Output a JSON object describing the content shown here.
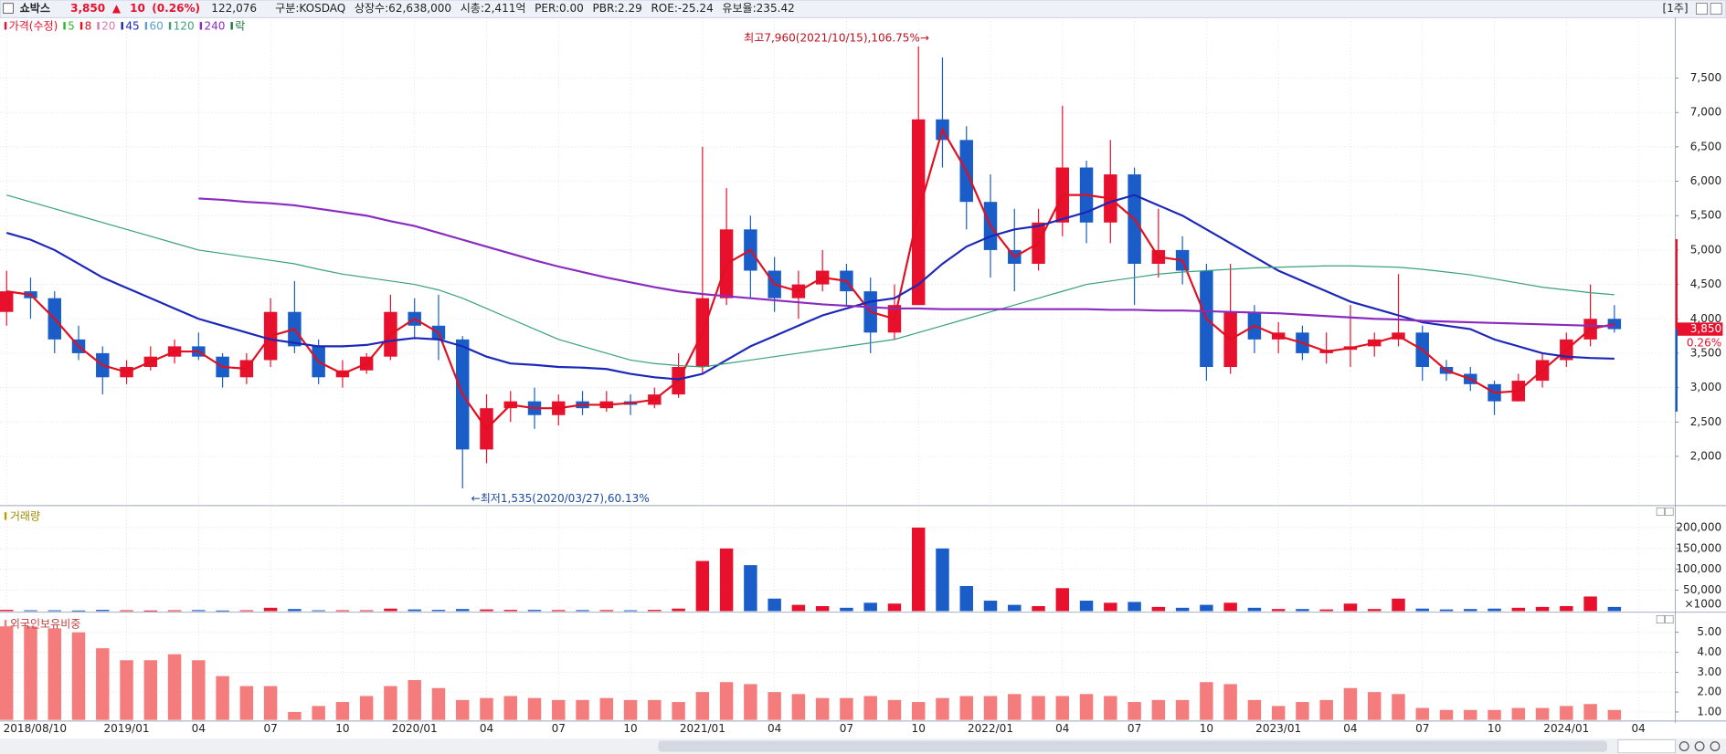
{
  "header": {
    "name": "쇼박스",
    "price": "3,850",
    "arrow": "▲",
    "change": "10",
    "change_pct": "(0.26%)",
    "volume": "122,076",
    "fields": [
      "구분:KOSDAQ",
      "상장수:62,638,000",
      "시총:2,411억",
      "PER:0.00",
      "PBR:2.29",
      "ROE:-25.24",
      "유보율:235.42"
    ],
    "period": "[1주]",
    "marker_pct": "0.26%"
  },
  "chart_data": [
    {
      "type": "candlestick",
      "legend_title": "가격(수정)",
      "legend_extra": "락",
      "categories": [
        "2018/08/10",
        null,
        null,
        null,
        null,
        "2019/01",
        null,
        null,
        "04",
        null,
        null,
        "07",
        null,
        null,
        "10",
        null,
        null,
        "2020/01",
        null,
        null,
        "04",
        null,
        null,
        "07",
        null,
        null,
        "10",
        null,
        null,
        "2021/01",
        null,
        null,
        "04",
        null,
        null,
        "07",
        null,
        null,
        "10",
        null,
        null,
        "2022/01",
        null,
        null,
        "04",
        null,
        null,
        "07",
        null,
        null,
        "10",
        null,
        null,
        "2023/01",
        null,
        null,
        "04",
        null,
        null,
        "07",
        null,
        null,
        "10",
        null,
        null,
        "2024/01",
        null,
        null,
        "04"
      ],
      "open": [
        4100,
        4400,
        4300,
        3700,
        3500,
        3150,
        3300,
        3450,
        3600,
        3450,
        3150,
        3400,
        4100,
        3600,
        3150,
        3250,
        3450,
        4100,
        3900,
        3700,
        2100,
        2700,
        2800,
        2600,
        2800,
        2700,
        2800,
        2750,
        2900,
        3300,
        4300,
        5300,
        4700,
        4300,
        4500,
        4700,
        4400,
        3800,
        4200,
        6900,
        6600,
        5700,
        5000,
        4800,
        5400,
        6200,
        5400,
        6100,
        4800,
        5000,
        4700,
        3300,
        4100,
        3700,
        3800,
        3500,
        3550,
        3600,
        3700,
        3800,
        3300,
        3200,
        3050,
        2800,
        3100,
        3400,
        3700,
        4000,
        null
      ],
      "high": [
        4700,
        4600,
        4400,
        3900,
        3600,
        3400,
        3600,
        3700,
        3800,
        3500,
        3500,
        4300,
        4550,
        3700,
        3400,
        3500,
        4350,
        4300,
        4350,
        3750,
        2900,
        2950,
        3000,
        2900,
        2950,
        2950,
        2900,
        3000,
        3500,
        6500,
        5900,
        5500,
        4900,
        4700,
        5000,
        4800,
        4600,
        4500,
        7960,
        7800,
        6800,
        6100,
        5600,
        5600,
        7100,
        6300,
        6600,
        6200,
        5600,
        5200,
        4800,
        4800,
        4200,
        3950,
        3900,
        3800,
        4200,
        3800,
        4650,
        3900,
        3400,
        3300,
        3100,
        3200,
        3500,
        3800,
        4500,
        4200,
        null
      ],
      "low": [
        3900,
        4000,
        3500,
        3400,
        2900,
        3050,
        3250,
        3350,
        3400,
        3000,
        3050,
        3300,
        3500,
        3050,
        3000,
        3200,
        3400,
        3700,
        3400,
        1535,
        1900,
        2500,
        2400,
        2450,
        2600,
        2650,
        2600,
        2700,
        2850,
        3200,
        4200,
        4300,
        4100,
        4000,
        4400,
        4200,
        3500,
        3700,
        4200,
        6200,
        5300,
        4600,
        4400,
        4700,
        5200,
        5100,
        5100,
        4200,
        4600,
        4500,
        3100,
        3200,
        3500,
        3500,
        3400,
        3350,
        3300,
        3450,
        3600,
        3100,
        3100,
        2950,
        2600,
        2800,
        3000,
        3300,
        3600,
        3800,
        null
      ],
      "close": [
        4400,
        4300,
        3700,
        3500,
        3150,
        3300,
        3450,
        3600,
        3450,
        3150,
        3400,
        4100,
        3600,
        3150,
        3250,
        3450,
        4100,
        3900,
        3700,
        2100,
        2700,
        2800,
        2600,
        2800,
        2700,
        2800,
        2750,
        2900,
        3300,
        4300,
        5300,
        4700,
        4300,
        4500,
        4700,
        4400,
        3800,
        4200,
        6900,
        6600,
        5700,
        5000,
        4800,
        5400,
        6200,
        5400,
        6100,
        4800,
        5000,
        4700,
        3300,
        4100,
        3700,
        3800,
        3500,
        3550,
        3600,
        3700,
        3800,
        3300,
        3200,
        3050,
        2800,
        3100,
        3400,
        3700,
        4000,
        3850,
        null
      ],
      "up_color": "#e8112d",
      "down_color": "#1a5dc8",
      "series": [
        {
          "name": "5",
          "color": "#2db82d"
        },
        {
          "name": "8",
          "color": "#e01020",
          "values": [
            4400,
            4350,
            4000,
            3600,
            3325,
            3225,
            3375,
            3525,
            3525,
            3300,
            3275,
            3750,
            3850,
            3375,
            3200,
            3350,
            3775,
            4000,
            3800,
            2900,
            2400,
            2750,
            2700,
            2700,
            2750,
            2750,
            2775,
            2825,
            3100,
            3800,
            4800,
            5000,
            4500,
            4400,
            4600,
            4550,
            4100,
            4000,
            5550,
            6750,
            6150,
            5350,
            4900,
            5100,
            5800,
            5800,
            5750,
            5450,
            4900,
            4850,
            4000,
            3700,
            3900,
            3750,
            3650,
            3525,
            3575,
            3650,
            3750,
            3550,
            3250,
            3125,
            2925,
            2950,
            3250,
            3550,
            3850,
            3925,
            null
          ]
        },
        {
          "name": "20",
          "color": "#d97ab0"
        },
        {
          "name": "45",
          "color": "#1b27b8",
          "values": [
            5250,
            5150,
            5000,
            4800,
            4600,
            4450,
            4300,
            4150,
            4000,
            3900,
            3800,
            3700,
            3650,
            3600,
            3600,
            3620,
            3680,
            3720,
            3700,
            3600,
            3450,
            3350,
            3330,
            3300,
            3290,
            3270,
            3200,
            3150,
            3120,
            3200,
            3400,
            3600,
            3750,
            3900,
            4050,
            4150,
            4250,
            4300,
            4500,
            4800,
            5050,
            5200,
            5300,
            5350,
            5450,
            5550,
            5700,
            5800,
            5650,
            5500,
            5300,
            5100,
            4900,
            4700,
            4550,
            4400,
            4250,
            4150,
            4050,
            3950,
            3900,
            3850,
            3700,
            3600,
            3500,
            3450,
            3430,
            3420,
            null
          ]
        },
        {
          "name": "60",
          "color": "#5aa0c8"
        },
        {
          "name": "120",
          "color": "#3aa07a",
          "values": [
            5800,
            5700,
            5600,
            5500,
            5400,
            5300,
            5200,
            5100,
            5000,
            4950,
            4900,
            4850,
            4800,
            4720,
            4650,
            4600,
            4550,
            4500,
            4420,
            4300,
            4150,
            4000,
            3850,
            3700,
            3600,
            3500,
            3400,
            3350,
            3320,
            3300,
            3350,
            3400,
            3450,
            3500,
            3550,
            3600,
            3650,
            3700,
            3800,
            3900,
            4000,
            4100,
            4200,
            4300,
            4400,
            4500,
            4550,
            4600,
            4650,
            4680,
            4700,
            4720,
            4740,
            4750,
            4760,
            4770,
            4770,
            4760,
            4750,
            4720,
            4680,
            4640,
            4580,
            4520,
            4460,
            4420,
            4380,
            4350,
            null
          ]
        },
        {
          "name": "240",
          "color": "#8a2bc0",
          "values": [
            null,
            null,
            null,
            null,
            null,
            null,
            null,
            null,
            5750,
            5730,
            5700,
            5680,
            5650,
            5600,
            5550,
            5500,
            5420,
            5350,
            5250,
            5150,
            5050,
            4950,
            4850,
            4760,
            4680,
            4600,
            4530,
            4460,
            4400,
            4360,
            4330,
            4300,
            4270,
            4240,
            4210,
            4190,
            4170,
            4150,
            4150,
            4140,
            4140,
            4140,
            4140,
            4140,
            4140,
            4140,
            4130,
            4130,
            4120,
            4120,
            4110,
            4100,
            4090,
            4080,
            4060,
            4040,
            4020,
            4000,
            3990,
            3970,
            3960,
            3950,
            3940,
            3930,
            3920,
            3910,
            3900,
            3890,
            null
          ]
        }
      ],
      "annotations": [
        "최고7,960(2021/10/15),106.75%→",
        "←최저1,535(2020/03/27),60.13%"
      ],
      "ylim": [
        1300,
        8380
      ],
      "yticks": [
        {
          "value": 2000,
          "label": "2,000"
        },
        {
          "value": 2500,
          "label": "2,500"
        },
        {
          "value": 3000,
          "label": "3,000"
        },
        {
          "value": 3500,
          "label": "3,500"
        },
        {
          "value": 4000,
          "label": "4,000"
        },
        {
          "value": 4500,
          "label": "4,500"
        },
        {
          "value": 5000,
          "label": "5,000"
        },
        {
          "value": 5500,
          "label": "5,500"
        },
        {
          "value": 6000,
          "label": "6,000"
        },
        {
          "value": 6500,
          "label": "6,500"
        },
        {
          "value": 7000,
          "label": "7,000"
        },
        {
          "value": 7500,
          "label": "7,500"
        }
      ],
      "grid": true
    },
    {
      "type": "bar",
      "title": "거래량",
      "unit_label": "×1000",
      "values": [
        3000,
        2000,
        2000,
        1500,
        3000,
        2000,
        1500,
        2000,
        2500,
        1500,
        2000,
        8000,
        5000,
        2000,
        2000,
        2000,
        6000,
        4000,
        3000,
        5000,
        4000,
        3000,
        3000,
        2500,
        2500,
        2500,
        2000,
        3000,
        6000,
        120000,
        150000,
        110000,
        30000,
        15000,
        12000,
        8000,
        20000,
        18000,
        200000,
        150000,
        60000,
        25000,
        15000,
        12000,
        55000,
        25000,
        20000,
        22000,
        10000,
        8000,
        15000,
        20000,
        8000,
        5000,
        5000,
        4000,
        18000,
        5000,
        30000,
        6000,
        4000,
        5000,
        6000,
        8000,
        10000,
        12000,
        35000,
        10000,
        null
      ],
      "ylim": [
        0,
        250000
      ],
      "yticks": [
        {
          "value": 50000,
          "label": "50,000"
        },
        {
          "value": 100000,
          "label": "100,000"
        },
        {
          "value": 150000,
          "label": "150,000"
        },
        {
          "value": 200000,
          "label": "200,000"
        }
      ],
      "grid": true
    },
    {
      "type": "bar",
      "title": "외국인보유비중",
      "color": "#f47c7c",
      "values": [
        5.3,
        5.3,
        5.2,
        5.0,
        4.2,
        3.6,
        3.6,
        3.9,
        3.6,
        2.8,
        2.3,
        2.3,
        1.0,
        1.3,
        1.5,
        1.8,
        2.3,
        2.6,
        2.2,
        1.6,
        1.7,
        1.8,
        1.7,
        1.6,
        1.6,
        1.7,
        1.6,
        1.6,
        1.5,
        2.0,
        2.5,
        2.4,
        2.0,
        1.9,
        1.7,
        1.7,
        1.8,
        1.6,
        1.5,
        1.7,
        1.8,
        1.8,
        1.9,
        1.8,
        1.8,
        1.9,
        1.8,
        1.5,
        1.6,
        1.6,
        2.5,
        2.4,
        1.6,
        1.3,
        1.5,
        1.6,
        2.2,
        2.0,
        1.9,
        1.2,
        1.1,
        1.1,
        1.1,
        1.2,
        1.2,
        1.3,
        1.4,
        1.1,
        null
      ],
      "ylim": [
        0.6,
        5.9
      ],
      "yticks": [
        {
          "value": 1,
          "label": "1.00"
        },
        {
          "value": 2,
          "label": "2.00"
        },
        {
          "value": 3,
          "label": "3.00"
        },
        {
          "value": 4,
          "label": "4.00"
        },
        {
          "value": 5,
          "label": "5.00"
        }
      ],
      "grid": true
    }
  ]
}
